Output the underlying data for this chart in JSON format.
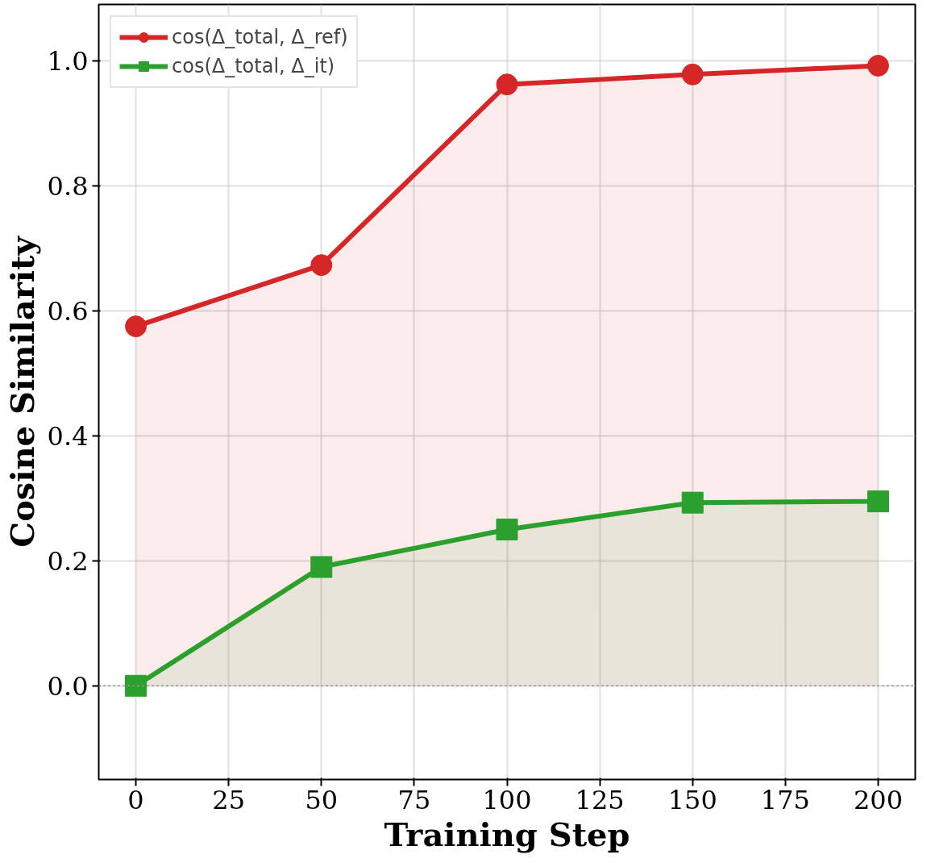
{
  "chart_data": {
    "type": "area",
    "xlabel": "Training Step",
    "ylabel": "Cosine Similarity",
    "x": [
      0,
      50,
      100,
      150,
      200
    ],
    "series": [
      {
        "name": "cos(Δ_total, Δ_ref)",
        "color": "#d62728",
        "values": [
          0.575,
          0.673,
          0.962,
          0.978,
          0.992
        ],
        "marker": "circle"
      },
      {
        "name": "cos(Δ_total, Δ_it)",
        "color": "#2ca02c",
        "values": [
          0.0,
          0.19,
          0.25,
          0.293,
          0.295
        ],
        "marker": "square"
      }
    ],
    "xlim": [
      -10,
      210
    ],
    "xticks": [
      0,
      25,
      50,
      75,
      100,
      125,
      150,
      175,
      200
    ],
    "ylim": [
      -0.15,
      1.09
    ],
    "yticks": [
      {
        "value": 0,
        "label": "0.0"
      },
      0.2,
      0.4,
      0.6,
      0.8,
      {
        "value": 1,
        "label": "1.0"
      }
    ],
    "ref_lines": [
      {
        "axis": "y",
        "value": 0,
        "label": null,
        "color": "#999999",
        "line_style": "dotted"
      }
    ],
    "grid": true,
    "legend": "top left"
  }
}
